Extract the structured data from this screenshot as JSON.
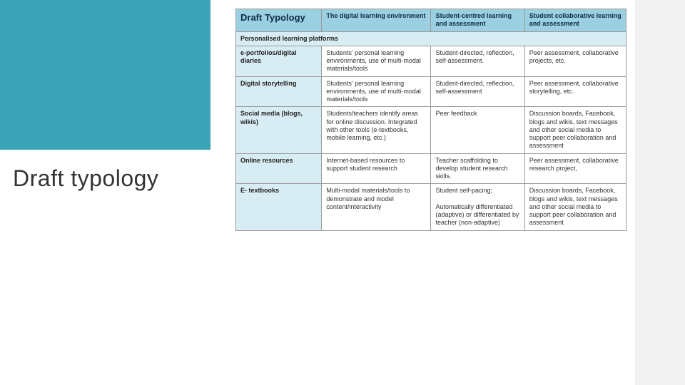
{
  "colors": {
    "teal": "#3ba3b6",
    "header_bg": "#9bd0e0",
    "header_text": "#0e2c4a",
    "subhead_bg": "#d8edf3",
    "border": "#999999",
    "right_band": "#f2f2f2",
    "body_text": "#333333"
  },
  "side_title": "Draft typology",
  "table": {
    "title": "Draft Typology",
    "headers": [
      "The digital learning environment",
      "Student-centred learning and assessment",
      "Student collaborative learning and assessment"
    ],
    "subhead": "Personalised learning platforms",
    "rows": [
      {
        "label": "e-portfolios/digital diaries",
        "cells": [
          "Students' personal learning environments, use of multi-modal materials/tools",
          "Student-directed, reflection, self-assessment.",
          "Peer assessment, collaborative projects, etc."
        ]
      },
      {
        "label": "Digital storytelling",
        "cells": [
          "Students' personal learning environments, use of multi-modal materials/tools",
          "Student-directed, reflection, self-assessment",
          "Peer assessment, collaborative storytelling, etc."
        ]
      },
      {
        "label": "Social media (blogs, wikis)",
        "cells": [
          "Students/teachers identify areas for online discussion. Integrated with other tools (e-textbooks, mobile learning, etc.)",
          "Peer feedback",
          "Discussion boards, Facebook, blogs and wikis, text messages and other social media to support peer collaboration and assessment"
        ]
      },
      {
        "label": "Online resources",
        "cells": [
          "Internet-based resources to support student research",
          "Teacher scaffolding to develop student research skills.",
          "Peer assessment, collaborative research project,"
        ]
      },
      {
        "label": "E- textbooks",
        "cells": [
          "Multi-modal materials/tools to demonstrate and model content/interactivity",
          "Student self-pacing;\n\nAutomatically differentiated (adaptive) or differentiated by teacher (non-adaptive)",
          "Discussion boards, Facebook, blogs and wikis, text messages and other social media to support peer collaboration and assessment"
        ]
      }
    ]
  }
}
